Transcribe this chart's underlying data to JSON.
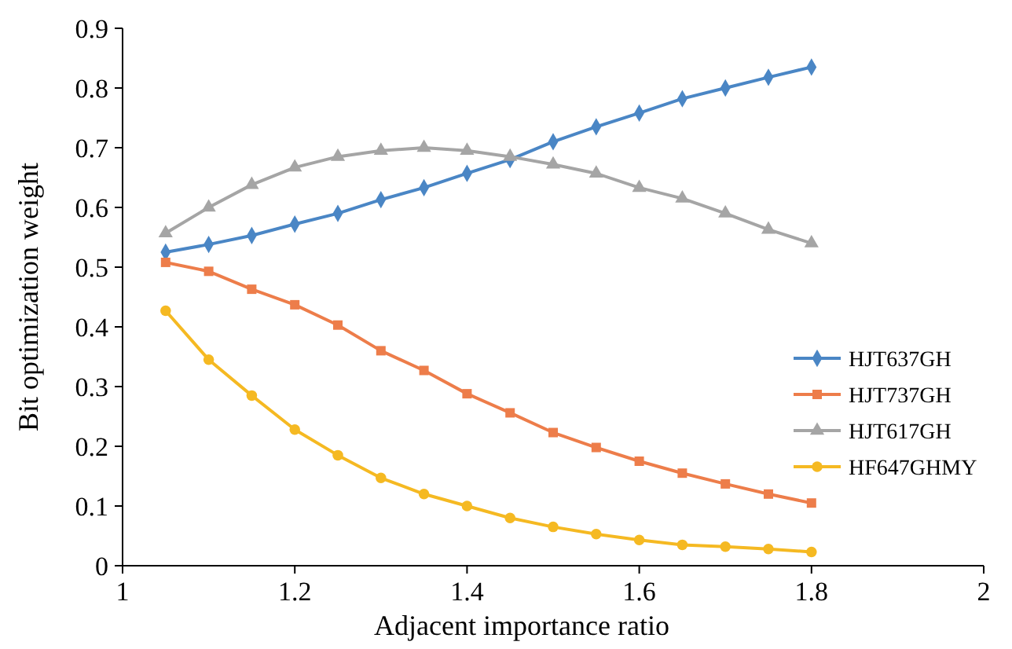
{
  "chart_data": {
    "type": "line",
    "xlabel": "Adjacent importance ratio",
    "ylabel": "Bit optimization weight",
    "x": [
      1.05,
      1.1,
      1.15,
      1.2,
      1.25,
      1.3,
      1.35,
      1.4,
      1.45,
      1.5,
      1.55,
      1.6,
      1.65,
      1.7,
      1.75,
      1.8
    ],
    "xlim": [
      1,
      2
    ],
    "xticks": [
      1,
      1.2,
      1.4,
      1.6,
      1.8,
      2
    ],
    "ylim": [
      0,
      0.9
    ],
    "yticks": [
      0,
      0.1,
      0.2,
      0.3,
      0.4,
      0.5,
      0.6,
      0.7,
      0.8,
      0.9
    ],
    "grid": false,
    "legend": "right",
    "line_style": "solid",
    "series": [
      {
        "name": "HJT637GH",
        "color": "#4a86c5",
        "marker": "diamond",
        "values": [
          0.525,
          0.538,
          0.553,
          0.572,
          0.59,
          0.613,
          0.633,
          0.657,
          0.68,
          0.71,
          0.735,
          0.758,
          0.782,
          0.8,
          0.818,
          0.835
        ]
      },
      {
        "name": "HJT737GH",
        "color": "#ed7d4a",
        "marker": "square",
        "values": [
          0.508,
          0.493,
          0.463,
          0.437,
          0.403,
          0.36,
          0.327,
          0.288,
          0.256,
          0.223,
          0.198,
          0.175,
          0.155,
          0.137,
          0.12,
          0.105
        ]
      },
      {
        "name": "HJT617GH",
        "color": "#a5a5a5",
        "marker": "triangle",
        "values": [
          0.557,
          0.6,
          0.638,
          0.667,
          0.685,
          0.695,
          0.7,
          0.695,
          0.685,
          0.672,
          0.657,
          0.633,
          0.615,
          0.59,
          0.563,
          0.54
        ]
      },
      {
        "name": "HF647GHMY",
        "color": "#f5b922",
        "marker": "circle",
        "values": [
          0.427,
          0.345,
          0.285,
          0.228,
          0.185,
          0.147,
          0.12,
          0.1,
          0.08,
          0.065,
          0.053,
          0.043,
          0.035,
          0.032,
          0.028,
          0.023
        ]
      }
    ]
  }
}
